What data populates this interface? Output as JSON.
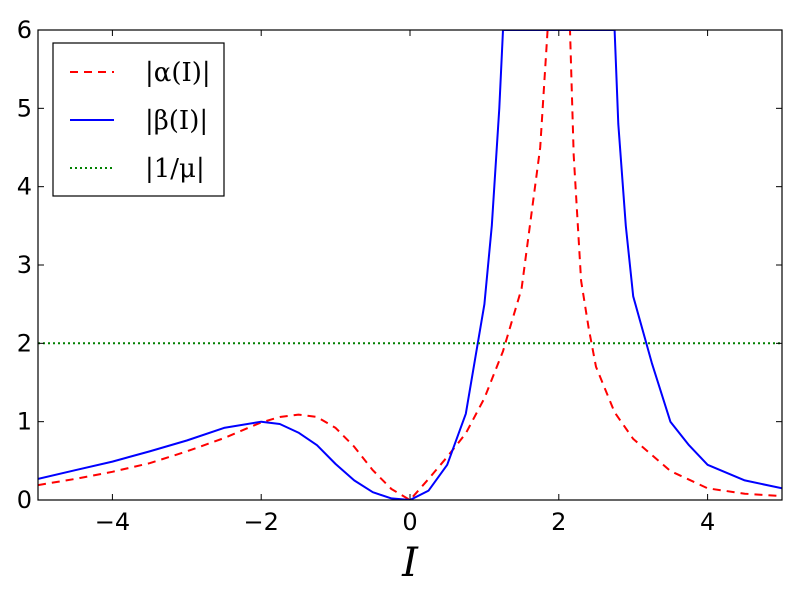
{
  "chart_data": {
    "type": "line",
    "xlabel": "I",
    "ylabel": "",
    "xlim": [
      -5,
      5
    ],
    "ylim": [
      0,
      6
    ],
    "x_ticks": [
      -4,
      -2,
      0,
      2,
      4
    ],
    "y_ticks": [
      0,
      1,
      2,
      3,
      4,
      5,
      6
    ],
    "x_tick_labels": [
      "−4",
      "−2",
      "0",
      "2",
      "4"
    ],
    "y_tick_labels": [
      "0",
      "1",
      "2",
      "3",
      "4",
      "5",
      "6"
    ],
    "grid": false,
    "legend_position": "top-left",
    "series": [
      {
        "name": "|α(I)|",
        "color": "#ff0000",
        "style": "dashed",
        "x": [
          -5,
          -4.5,
          -4,
          -3.5,
          -3,
          -2.5,
          -2,
          -1.75,
          -1.5,
          -1.25,
          -1,
          -0.75,
          -0.5,
          -0.25,
          0,
          0.25,
          0.5,
          0.75,
          1,
          1.25,
          1.5,
          1.75,
          1.85,
          2.15,
          2.2,
          2.3,
          2.4,
          2.5,
          2.75,
          3,
          3.5,
          4,
          4.5,
          5
        ],
        "y": [
          0.19,
          0.27,
          0.36,
          0.47,
          0.62,
          0.79,
          0.99,
          1.06,
          1.09,
          1.06,
          0.92,
          0.68,
          0.38,
          0.14,
          0,
          0.27,
          0.55,
          0.85,
          1.3,
          1.9,
          2.7,
          4.5,
          6.0,
          6.0,
          4.4,
          2.8,
          2.2,
          1.7,
          1.12,
          0.78,
          0.37,
          0.15,
          0.08,
          0.05
        ]
      },
      {
        "name": "|β(I)|",
        "color": "#0000ff",
        "style": "solid",
        "x": [
          -5,
          -4.5,
          -4,
          -3.5,
          -3,
          -2.5,
          -2,
          -1.75,
          -1.5,
          -1.25,
          -1,
          -0.75,
          -0.5,
          -0.25,
          0,
          0.25,
          0.5,
          0.75,
          1,
          1.1,
          1.2,
          1.25,
          2.75,
          2.8,
          2.9,
          3,
          3.25,
          3.5,
          3.75,
          4,
          4.5,
          5
        ],
        "y": [
          0.27,
          0.38,
          0.49,
          0.62,
          0.76,
          0.92,
          1.0,
          0.97,
          0.86,
          0.7,
          0.46,
          0.25,
          0.1,
          0.02,
          0,
          0.12,
          0.45,
          1.1,
          2.5,
          3.5,
          5.0,
          6.0,
          6.0,
          4.8,
          3.5,
          2.6,
          1.75,
          1.0,
          0.7,
          0.45,
          0.25,
          0.15
        ]
      },
      {
        "name": "|1/μ|",
        "color": "#008000",
        "style": "dotted",
        "x": [
          -5,
          5
        ],
        "y": [
          2,
          2
        ]
      }
    ]
  }
}
